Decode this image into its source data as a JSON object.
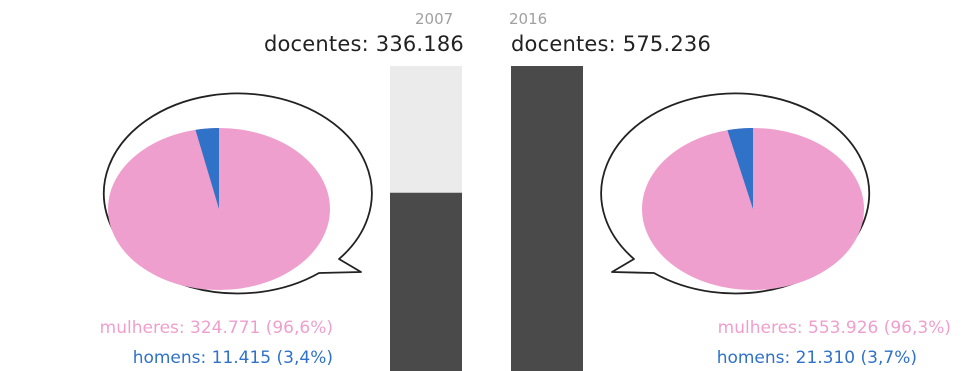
{
  "colors": {
    "women": "#ef9fcd",
    "men": "#2f72c8",
    "bar": "#4a4a4a",
    "bar_track": "#ebebeb",
    "bubble_stroke": "#222222"
  },
  "chart_data": [
    {
      "type": "bar",
      "categories": [
        "2007",
        "2016"
      ],
      "series": [
        {
          "name": "docentes",
          "values": [
            336186,
            575236
          ]
        }
      ],
      "ylim": [
        0,
        575236
      ],
      "labels": [
        "docentes: 336.186",
        "docentes: 575.236"
      ]
    },
    {
      "type": "pie",
      "year": "2007",
      "slices": [
        {
          "category": "mulheres",
          "value": 324771,
          "percent": 96.6,
          "label": "mulheres: 324.771 (96,6%)"
        },
        {
          "category": "homens",
          "value": 11415,
          "percent": 3.4,
          "label": "homens: 11.415 (3,4%)"
        }
      ]
    },
    {
      "type": "pie",
      "year": "2016",
      "slices": [
        {
          "category": "mulheres",
          "value": 553926,
          "percent": 96.3,
          "label": "mulheres: 553.926 (96,3%)"
        },
        {
          "category": "homens",
          "value": 21310,
          "percent": 3.7,
          "label": "homens: 21.310 (3,7%)"
        }
      ]
    }
  ]
}
